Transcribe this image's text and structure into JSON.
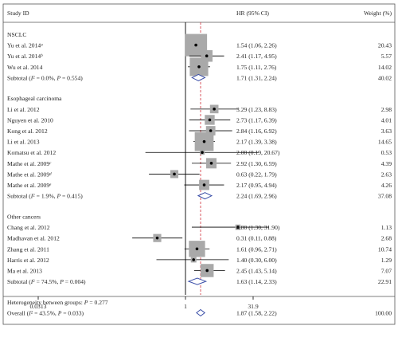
{
  "chart_data": {
    "type": "forest",
    "columns": {
      "study": "Study ID",
      "effect": "HR (95% CI)",
      "weight": "Weight (%)"
    },
    "axis": {
      "scale": "log",
      "xlim": [
        0.0313,
        31.9
      ],
      "ticks": [
        0.0313,
        1,
        31.9
      ],
      "tick_labels": [
        "0.0313",
        "1",
        "31.9"
      ],
      "reference": 1,
      "overall_line": 1.87
    },
    "colors": {
      "box": "#a9a9a9",
      "diamond": "#3b4fa8",
      "refline": "#000000",
      "overall_line": "#d4464f",
      "border": "#555555"
    },
    "groups": [
      {
        "name": "NSCLC",
        "studies": [
          {
            "label": "Yu et al. 2014",
            "sup": "a",
            "hr": 1.54,
            "lo": 1.06,
            "hi": 2.26,
            "text": "1.54 (1.06, 2.26)",
            "weight": 20.43,
            "weight_text": "20.43"
          },
          {
            "label": "Yu et al. 2014",
            "sup": "b",
            "hr": 2.41,
            "lo": 1.17,
            "hi": 4.95,
            "text": "2.41 (1.17, 4.95)",
            "weight": 5.57,
            "weight_text": "5.57"
          },
          {
            "label": "Wu et al. 2014",
            "sup": "",
            "hr": 1.75,
            "lo": 1.11,
            "hi": 2.76,
            "text": "1.75 (1.11, 2.76)",
            "weight": 14.02,
            "weight_text": "14.02"
          }
        ],
        "subtotal": {
          "label": "Subtotal (",
          "i2": "I",
          "i2sup": "2",
          "stat": " = 0.0%, ",
          "p": "P",
          "pval": " = 0.554)",
          "hr": 1.71,
          "lo": 1.31,
          "hi": 2.24,
          "text": "1.71 (1.31, 2.24)",
          "weight_text": "40.02"
        }
      },
      {
        "name": "Esophageal carcinoma",
        "studies": [
          {
            "label": "Li et al. 2012",
            "sup": "",
            "hr": 3.29,
            "lo": 1.23,
            "hi": 8.83,
            "text": "3.29 (1.23, 8.83)",
            "weight": 2.98,
            "weight_text": "2.98"
          },
          {
            "label": "Nguyen et al. 2010",
            "sup": "",
            "hr": 2.73,
            "lo": 1.17,
            "hi": 6.39,
            "text": "2.73 (1.17, 6.39)",
            "weight": 4.01,
            "weight_text": "4.01"
          },
          {
            "label": "Kong et al. 2012",
            "sup": "",
            "hr": 2.84,
            "lo": 1.16,
            "hi": 6.92,
            "text": "2.84 (1.16, 6.92)",
            "weight": 3.63,
            "weight_text": "3.63"
          },
          {
            "label": "Li et al. 2013",
            "sup": "",
            "hr": 2.17,
            "lo": 1.39,
            "hi": 3.38,
            "text": "2.17 (1.39, 3.38)",
            "weight": 14.65,
            "weight_text": "14.65"
          },
          {
            "label": "Komatsu et al. 2012",
            "sup": "",
            "hr": 2.0,
            "lo": 0.19,
            "hi": 20.67,
            "text": "2.00 (0.19, 20.67)",
            "weight": 0.53,
            "weight_text": "0.53"
          },
          {
            "label": "Mathe et al. 2009",
            "sup": "c",
            "hr": 2.92,
            "lo": 1.3,
            "hi": 6.59,
            "text": "2.92 (1.30, 6.59)",
            "weight": 4.39,
            "weight_text": "4.39"
          },
          {
            "label": "Mathe et al. 2009",
            "sup": "d",
            "hr": 0.63,
            "lo": 0.22,
            "hi": 1.79,
            "text": "0.63 (0.22, 1.79)",
            "weight": 2.63,
            "weight_text": "2.63"
          },
          {
            "label": "Mathe et al. 2009",
            "sup": "e",
            "hr": 2.17,
            "lo": 0.95,
            "hi": 4.94,
            "text": "2.17 (0.95, 4.94)",
            "weight": 4.26,
            "weight_text": "4.26"
          }
        ],
        "subtotal": {
          "label": "Subtotal (",
          "i2": "I",
          "i2sup": "2",
          "stat": " = 1.9%, ",
          "p": "P",
          "pval": " = 0.415)",
          "hr": 2.24,
          "lo": 1.69,
          "hi": 2.96,
          "text": "2.24 (1.69, 2.96)",
          "weight_text": "37.08"
        }
      },
      {
        "name": "Other cancers",
        "studies": [
          {
            "label": "Chang et al. 2012",
            "sup": "",
            "hr": 8.8,
            "lo": 1.3,
            "hi": 31.9,
            "text": "8.80 (1.30, 31.90)",
            "weight": 1.13,
            "weight_text": "1.13"
          },
          {
            "label": "Madhavan et al. 2012",
            "sup": "",
            "hr": 0.31,
            "lo": 0.11,
            "hi": 0.88,
            "text": "0.31 (0.11, 0.88)",
            "weight": 2.68,
            "weight_text": "2.68"
          },
          {
            "label": "Zhang et al. 2011",
            "sup": "",
            "hr": 1.61,
            "lo": 0.96,
            "hi": 2.71,
            "text": "1.61 (0.96, 2.71)",
            "weight": 10.74,
            "weight_text": "10.74"
          },
          {
            "label": "Harris et al. 2012",
            "sup": "",
            "hr": 1.4,
            "lo": 0.3,
            "hi": 6.0,
            "text": "1.40 (0.30, 6.00)",
            "weight": 1.29,
            "weight_text": "1.29"
          },
          {
            "label": "Ma et al. 2013",
            "sup": "",
            "hr": 2.45,
            "lo": 1.43,
            "hi": 5.14,
            "text": "2.45 (1.43, 5.14)",
            "weight": 7.07,
            "weight_text": "7.07"
          }
        ],
        "subtotal": {
          "label": "Subtotal (",
          "i2": "I",
          "i2sup": "2",
          "stat": " = 74.5%, ",
          "p": "P",
          "pval": " = 0.004)",
          "hr": 1.63,
          "lo": 1.14,
          "hi": 2.33,
          "text": "1.63 (1.14, 2.33)",
          "weight_text": "22.91"
        }
      }
    ],
    "heterogeneity": {
      "text": "Heterogeneity between groups: ",
      "p": "P",
      "pval": " = 0.277"
    },
    "overall": {
      "label": "Overall (",
      "i2": "I",
      "i2sup": "2",
      "stat": " = 43.5%, ",
      "p": "P",
      "pval": " = 0.033)",
      "hr": 1.87,
      "lo": 1.58,
      "hi": 2.22,
      "text": "1.87 (1.58, 2.22)",
      "weight_text": "100.00"
    }
  }
}
